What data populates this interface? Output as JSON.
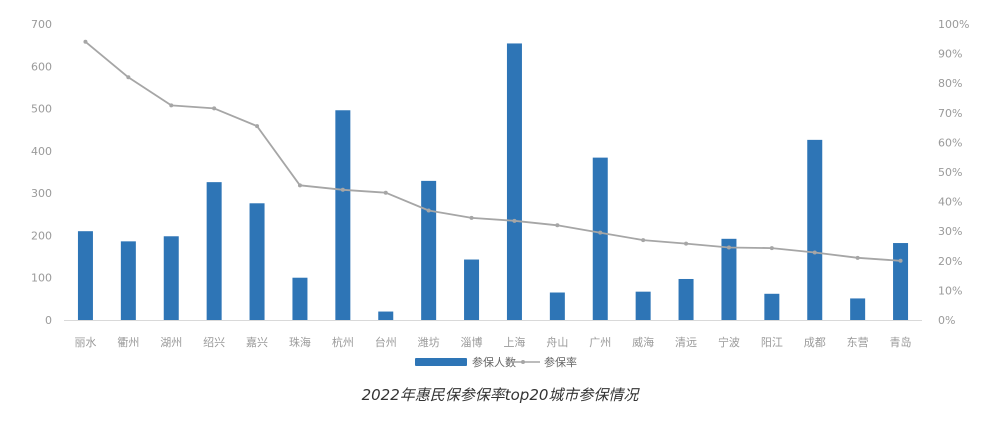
{
  "chart_data": {
    "type": "bar",
    "title": "2022年惠民保参保率top20城市参保情况",
    "categories": [
      "丽水",
      "衢州",
      "湖州",
      "绍兴",
      "嘉兴",
      "珠海",
      "杭州",
      "台州",
      "潍坊",
      "淄博",
      "上海",
      "舟山",
      "广州",
      "威海",
      "清远",
      "宁波",
      "阳江",
      "成都",
      "东营",
      "青岛"
    ],
    "series": [
      {
        "name": "参保人数",
        "type": "bar",
        "axis": "left",
        "color": "#2e75b6",
        "values": [
          210,
          186,
          198,
          326,
          276,
          100,
          496,
          20,
          329,
          143,
          654,
          65,
          384,
          67,
          97,
          192,
          62,
          426,
          51,
          182
        ]
      },
      {
        "name": "参保率",
        "type": "line",
        "axis": "right",
        "color": "#a6a6a6",
        "values": [
          0.94,
          0.82,
          0.725,
          0.715,
          0.655,
          0.455,
          0.44,
          0.43,
          0.37,
          0.345,
          0.335,
          0.32,
          0.295,
          0.27,
          0.258,
          0.245,
          0.243,
          0.228,
          0.21,
          0.2
        ]
      }
    ],
    "y_left": {
      "min": 0,
      "max": 700,
      "ticks": [
        "0",
        "100",
        "200",
        "300",
        "400",
        "500",
        "600",
        "700"
      ]
    },
    "y_right": {
      "min": 0,
      "max": 1,
      "ticks": [
        "0%",
        "10%",
        "20%",
        "30%",
        "40%",
        "50%",
        "60%",
        "70%",
        "80%",
        "90%",
        "100%"
      ]
    },
    "grid": false,
    "legend_position": "bottom"
  }
}
